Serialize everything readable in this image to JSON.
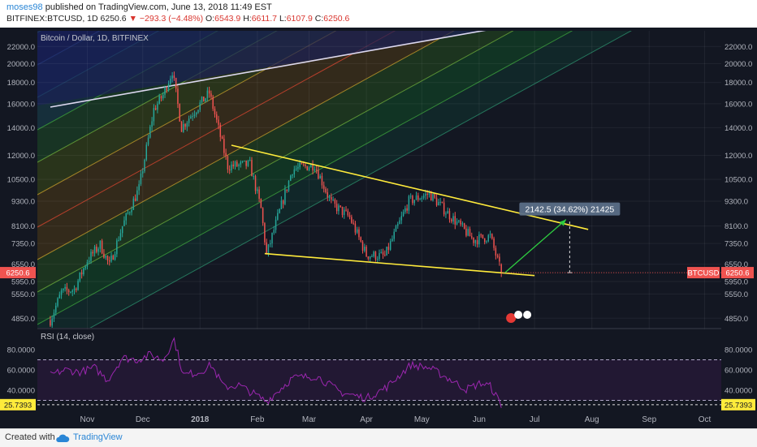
{
  "header": {
    "author": "moses98",
    "published_text": "published on TradingView.com, June 13, 2018 11:49 EST",
    "symbol": "BITFINEX:BTCUSD, 1D",
    "last": "6250.6",
    "change": "▼ −293.3 (−4.48%)",
    "o_label": "O:",
    "o_value": "6543.9",
    "h_label": "H:",
    "h_value": "6611.7",
    "l_label": "L:",
    "l_value": "6107.9",
    "c_label": "C:",
    "c_value": "6250.6"
  },
  "footer": {
    "created_with": "Created with",
    "brand": "TradingView"
  },
  "colors": {
    "background": "#131722",
    "up": "#26a69a",
    "down": "#ef5350",
    "trendline": "#ffeb3b",
    "rsi": "#9c27b0",
    "measure_arrow": "#2ecc40"
  },
  "chart_data": [
    {
      "type": "candlestick",
      "title": "Bitcoin / Dollar, 1D, BITFINEX",
      "y_scale": "log",
      "ylim": [
        4600,
        24000
      ],
      "y_ticks": [
        "4850.0",
        "5550.0",
        "5950.0",
        "6550.0",
        "7350.0",
        "8100.0",
        "9300.0",
        "10500.0",
        "12000.0",
        "14000.0",
        "16000.0",
        "18000.0",
        "20000.0",
        "22000.0"
      ],
      "x_ticks": [
        "Nov",
        "Dec",
        "2018",
        "Feb",
        "Mar",
        "Apr",
        "May",
        "Jun",
        "Jul",
        "Aug",
        "Sep",
        "Oct"
      ],
      "x_tick_dates": [
        "2017-11-01",
        "2017-12-01",
        "2018-01-01",
        "2018-02-01",
        "2018-03-01",
        "2018-04-01",
        "2018-05-01",
        "2018-06-01",
        "2018-07-01",
        "2018-08-01",
        "2018-09-01",
        "2018-10-01"
      ],
      "series_points": [
        {
          "date": "2017-10-12",
          "value": 4800
        },
        {
          "date": "2017-10-18",
          "value": 5600
        },
        {
          "date": "2017-10-25",
          "value": 5700
        },
        {
          "date": "2017-11-01",
          "value": 6700
        },
        {
          "date": "2017-11-08",
          "value": 7300
        },
        {
          "date": "2017-11-13",
          "value": 6500
        },
        {
          "date": "2017-11-20",
          "value": 8100
        },
        {
          "date": "2017-11-29",
          "value": 10000
        },
        {
          "date": "2017-12-07",
          "value": 15500
        },
        {
          "date": "2017-12-12",
          "value": 16800
        },
        {
          "date": "2017-12-17",
          "value": 19200
        },
        {
          "date": "2017-12-22",
          "value": 14000
        },
        {
          "date": "2017-12-27",
          "value": 15000
        },
        {
          "date": "2018-01-06",
          "value": 17000
        },
        {
          "date": "2018-01-10",
          "value": 14500
        },
        {
          "date": "2018-01-16",
          "value": 11300
        },
        {
          "date": "2018-01-28",
          "value": 11400
        },
        {
          "date": "2018-02-03",
          "value": 8900
        },
        {
          "date": "2018-02-06",
          "value": 6900
        },
        {
          "date": "2018-02-12",
          "value": 8500
        },
        {
          "date": "2018-02-20",
          "value": 11100
        },
        {
          "date": "2018-03-04",
          "value": 11400
        },
        {
          "date": "2018-03-13",
          "value": 9200
        },
        {
          "date": "2018-03-23",
          "value": 8500
        },
        {
          "date": "2018-04-01",
          "value": 6900
        },
        {
          "date": "2018-04-11",
          "value": 6850
        },
        {
          "date": "2018-04-24",
          "value": 9300
        },
        {
          "date": "2018-05-05",
          "value": 9700
        },
        {
          "date": "2018-05-15",
          "value": 8700
        },
        {
          "date": "2018-05-29",
          "value": 7500
        },
        {
          "date": "2018-06-07",
          "value": 7650
        },
        {
          "date": "2018-06-13",
          "value": 6250
        }
      ],
      "last_price_label": "6250.6",
      "symbol_label": "BTCUSD",
      "annotations": {
        "trendline_upper": [
          {
            "date": "2018-01-18",
            "value": 12700
          },
          {
            "date": "2018-07-30",
            "value": 7950
          }
        ],
        "trendline_lower": [
          {
            "date": "2018-02-05",
            "value": 6950
          },
          {
            "date": "2018-07-01",
            "value": 6150
          }
        ],
        "measure_label": "2142.5 (34.62%) 21425"
      }
    },
    {
      "type": "line",
      "title": "RSI (14, close)",
      "ylim": [
        20,
        100
      ],
      "y_ticks": [
        "40.0000",
        "60.0000",
        "80.0000"
      ],
      "levels": [
        70,
        30
      ],
      "current_value_label": "25.7393",
      "series_points": [
        {
          "date": "2017-10-12",
          "value": 55
        },
        {
          "date": "2017-10-20",
          "value": 60
        },
        {
          "date": "2017-10-28",
          "value": 58
        },
        {
          "date": "2017-11-05",
          "value": 62
        },
        {
          "date": "2017-11-12",
          "value": 50
        },
        {
          "date": "2017-11-20",
          "value": 72
        },
        {
          "date": "2017-11-28",
          "value": 70
        },
        {
          "date": "2017-12-05",
          "value": 75
        },
        {
          "date": "2017-12-12",
          "value": 70
        },
        {
          "date": "2017-12-18",
          "value": 90
        },
        {
          "date": "2017-12-23",
          "value": 55
        },
        {
          "date": "2018-01-01",
          "value": 58
        },
        {
          "date": "2018-01-07",
          "value": 65
        },
        {
          "date": "2018-01-14",
          "value": 43
        },
        {
          "date": "2018-01-22",
          "value": 45
        },
        {
          "date": "2018-02-06",
          "value": 29
        },
        {
          "date": "2018-02-20",
          "value": 52
        },
        {
          "date": "2018-03-05",
          "value": 54
        },
        {
          "date": "2018-03-18",
          "value": 38
        },
        {
          "date": "2018-04-01",
          "value": 32
        },
        {
          "date": "2018-04-12",
          "value": 43
        },
        {
          "date": "2018-04-25",
          "value": 65
        },
        {
          "date": "2018-05-05",
          "value": 62
        },
        {
          "date": "2018-05-15",
          "value": 52
        },
        {
          "date": "2018-05-25",
          "value": 41
        },
        {
          "date": "2018-06-02",
          "value": 47
        },
        {
          "date": "2018-06-07",
          "value": 44
        },
        {
          "date": "2018-06-13",
          "value": 25.7
        }
      ]
    }
  ]
}
